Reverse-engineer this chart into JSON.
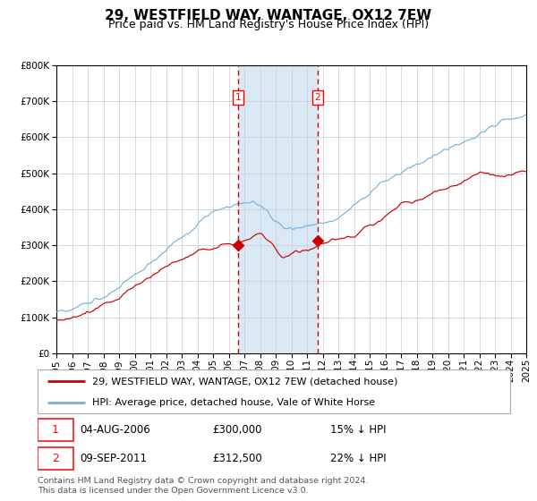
{
  "title": "29, WESTFIELD WAY, WANTAGE, OX12 7EW",
  "subtitle": "Price paid vs. HM Land Registry's House Price Index (HPI)",
  "ylim": [
    0,
    800000
  ],
  "yticks": [
    0,
    100000,
    200000,
    300000,
    400000,
    500000,
    600000,
    700000,
    800000
  ],
  "ytick_labels": [
    "£0",
    "£100K",
    "£200K",
    "£300K",
    "£400K",
    "£500K",
    "£600K",
    "£700K",
    "£800K"
  ],
  "x_start_year": 1995,
  "x_end_year": 2025,
  "hpi_color": "#7ab0d8",
  "price_color": "#cc0000",
  "marker_color": "#cc0000",
  "sale1_date": "04-AUG-2006",
  "sale1_price": 300000,
  "sale1_t": 2006.583,
  "sale1_hpi_pct": "15% ↓ HPI",
  "sale2_date": "09-SEP-2011",
  "sale2_price": 312500,
  "sale2_t": 2011.667,
  "sale2_hpi_pct": "22% ↓ HPI",
  "legend_line1": "29, WESTFIELD WAY, WANTAGE, OX12 7EW (detached house)",
  "legend_line2": "HPI: Average price, detached house, Vale of White Horse",
  "footer": "Contains HM Land Registry data © Crown copyright and database right 2024.\nThis data is licensed under the Open Government Licence v3.0.",
  "shade_color": "#d8e8f5",
  "vline_color": "#cc0000",
  "grid_color": "#cccccc",
  "background_color": "#ffffff",
  "title_fontsize": 11,
  "subtitle_fontsize": 9,
  "tick_fontsize": 7.5
}
